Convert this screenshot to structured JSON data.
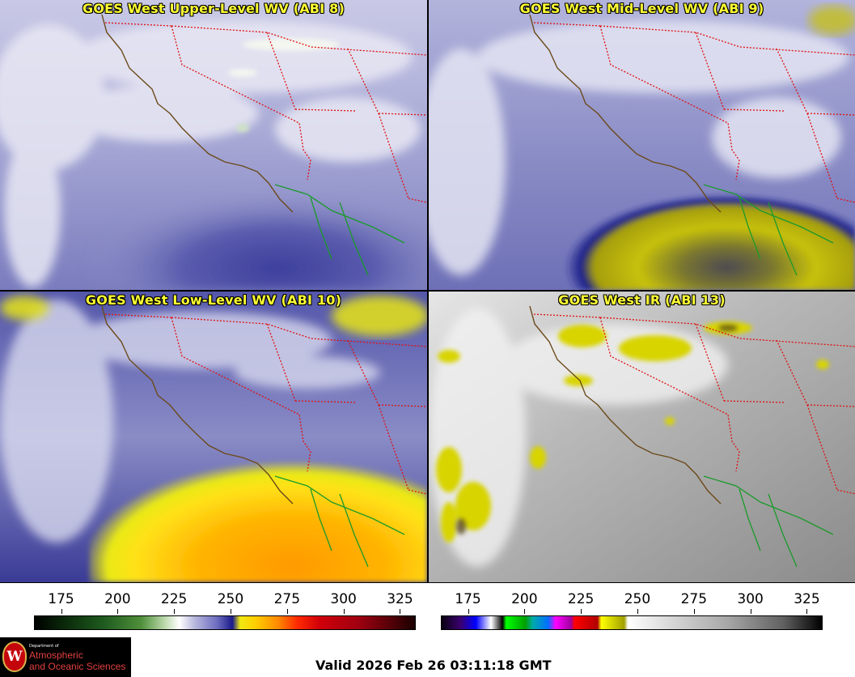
{
  "panels": [
    {
      "title": "GOES West Upper-Level WV (ABI 8)"
    },
    {
      "title": "GOES West Mid-Level WV (ABI 9)"
    },
    {
      "title": "GOES West Low-Level WV (ABI 10)"
    },
    {
      "title": "GOES West IR (ABI 13)"
    }
  ],
  "colorbars": [
    {
      "name": "water-vapor",
      "ticks": [
        "175",
        "200",
        "225",
        "250",
        "275",
        "300",
        "325"
      ]
    },
    {
      "name": "infrared",
      "ticks": [
        "175",
        "200",
        "225",
        "250",
        "275",
        "300",
        "325"
      ]
    }
  ],
  "logo": {
    "dept_line": "Department of",
    "line1": "Atmospheric",
    "line2": "and Oceanic Sciences",
    "seal_letter": "W"
  },
  "valid_time": "Valid 2026 Feb 26 03:11:18 GMT",
  "colors": {
    "coastline": "#6b4a1a",
    "state_borders": "#e01010",
    "mexico_coast": "#1a9a2a",
    "title_text": "#ffff33"
  }
}
